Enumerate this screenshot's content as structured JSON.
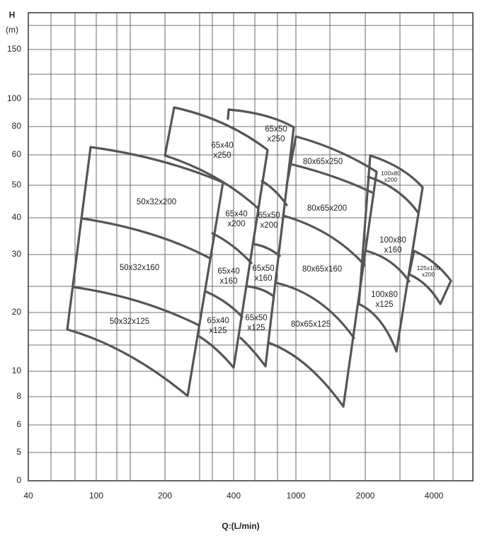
{
  "y_axis": {
    "title": "H",
    "unit": "(m)",
    "ticks": [
      "0",
      "5",
      "6",
      "8",
      "10",
      "20",
      "30",
      "40",
      "50",
      "60",
      "80",
      "100",
      "150"
    ]
  },
  "x_axis": {
    "title": "Q:(L/min)",
    "ticks": [
      "40",
      "100",
      "200",
      "400",
      "1000",
      "2000",
      "4000"
    ]
  },
  "regions": [
    {
      "lines": [
        "50x32x200"
      ]
    },
    {
      "lines": [
        "50x32x160"
      ]
    },
    {
      "lines": [
        "50x32x125"
      ]
    },
    {
      "lines": [
        "65x40",
        "x250"
      ]
    },
    {
      "lines": [
        "65x40",
        "x200"
      ]
    },
    {
      "lines": [
        "65x40",
        "x160"
      ]
    },
    {
      "lines": [
        "65x40",
        "x125"
      ]
    },
    {
      "lines": [
        "65x50",
        "x250"
      ]
    },
    {
      "lines": [
        "65x50",
        "x200"
      ]
    },
    {
      "lines": [
        "65x50",
        "x160"
      ]
    },
    {
      "lines": [
        "65x50",
        "x125"
      ]
    },
    {
      "lines": [
        "80x65x250"
      ]
    },
    {
      "lines": [
        "80x65x200"
      ]
    },
    {
      "lines": [
        "80x65x160"
      ]
    },
    {
      "lines": [
        "80x65x125"
      ]
    },
    {
      "lines": [
        "100x80",
        "x200"
      ]
    },
    {
      "lines": [
        "100x80",
        "x160"
      ]
    },
    {
      "lines": [
        "100x80",
        "x125"
      ]
    },
    {
      "lines": [
        "125x100",
        "x200"
      ]
    }
  ]
}
